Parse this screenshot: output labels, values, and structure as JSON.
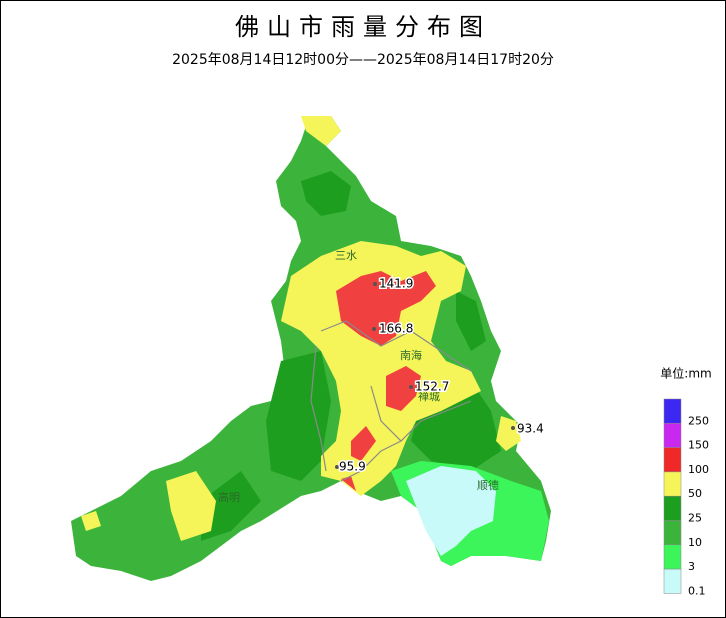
{
  "header": {
    "title": "佛山市雨量分布图",
    "subtitle": "2025年08月14日12时00分——2025年08月14日17时20分"
  },
  "districts": [
    "三水",
    "南海",
    "禅城",
    "高明",
    "顺德"
  ],
  "stations": [
    141.9,
    166.8,
    152.7,
    93.4,
    95.9
  ],
  "legend": {
    "unit": "单位:mm",
    "levels": [
      {
        "value": 250,
        "color": "#3c28f0"
      },
      {
        "value": 150,
        "color": "#c828f0"
      },
      {
        "value": 100,
        "color": "#f02828"
      },
      {
        "value": 50,
        "color": "#f5f55a"
      },
      {
        "value": 25,
        "color": "#1e9e1e"
      },
      {
        "value": 10,
        "color": "#3cb43c"
      },
      {
        "value": 3,
        "color": "#3cf55a"
      },
      {
        "value": 0.1,
        "color": "#c8fafa"
      }
    ]
  }
}
